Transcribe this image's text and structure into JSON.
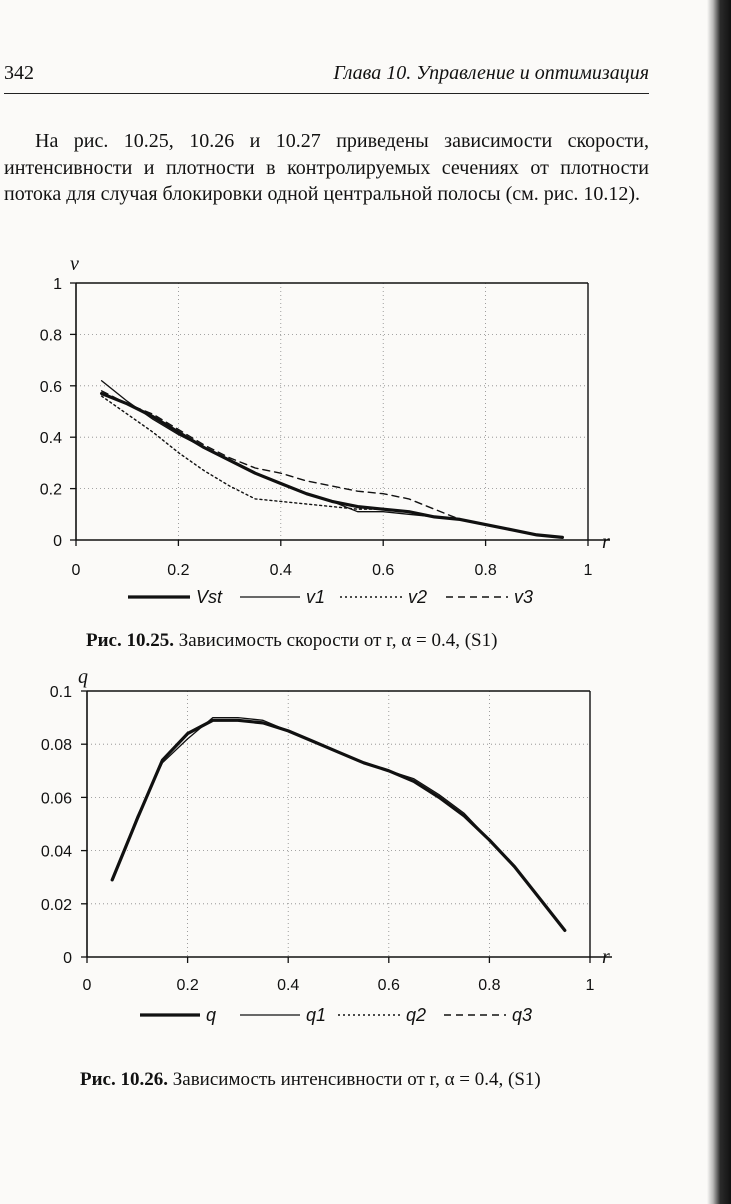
{
  "header": {
    "page_number": "342",
    "chapter_title": "Глава 10. Управление и оптимизация"
  },
  "intro_text": "На рис. 10.25, 10.26 и 10.27 приведены зависимости ско­рости, интенсивности и плотности в контролируемых се­чениях от плотности потока для случая блокировки одной центральной полосы (см. рис. 10.12).",
  "figures": [
    {
      "caption_label": "Рис. 10.25.",
      "caption_text": "Зависимость скорости от r, α = 0.4, (S1)"
    },
    {
      "caption_label": "Рис. 10.26.",
      "caption_text": "Зависимость интенсивности от r, α = 0.4, (S1)"
    }
  ],
  "chart_data": [
    {
      "type": "line",
      "xlabel": "r",
      "ylabel": "v",
      "xlim": [
        0,
        1
      ],
      "ylim": [
        0,
        1
      ],
      "x_ticks": [
        "0",
        "0.2",
        "0.4",
        "0.6",
        "0.8",
        "1"
      ],
      "y_ticks": [
        "0",
        "0.2",
        "0.4",
        "0.6",
        "0.8",
        "1"
      ],
      "grid": "dotted",
      "legend_position": "bottom",
      "series": [
        {
          "name": "Vst",
          "style": "thick-solid",
          "x": [
            0.05,
            0.1,
            0.15,
            0.2,
            0.25,
            0.3,
            0.35,
            0.4,
            0.45,
            0.5,
            0.55,
            0.6,
            0.65,
            0.7,
            0.75,
            0.8,
            0.85,
            0.9,
            0.95
          ],
          "y": [
            0.57,
            0.53,
            0.48,
            0.42,
            0.36,
            0.31,
            0.26,
            0.22,
            0.18,
            0.15,
            0.13,
            0.12,
            0.11,
            0.09,
            0.08,
            0.06,
            0.04,
            0.02,
            0.01
          ]
        },
        {
          "name": "v1",
          "style": "thin-solid",
          "x": [
            0.05,
            0.1,
            0.15,
            0.2,
            0.25,
            0.3,
            0.35,
            0.4,
            0.45,
            0.5,
            0.55,
            0.6,
            0.65,
            0.7,
            0.75,
            0.8,
            0.85,
            0.9,
            0.95
          ],
          "y": [
            0.62,
            0.54,
            0.47,
            0.41,
            0.36,
            0.31,
            0.26,
            0.22,
            0.18,
            0.15,
            0.11,
            0.11,
            0.1,
            0.09,
            0.08,
            0.06,
            0.04,
            0.02,
            0.01
          ]
        },
        {
          "name": "v2",
          "style": "dotted",
          "x": [
            0.05,
            0.1,
            0.15,
            0.2,
            0.25,
            0.3,
            0.35,
            0.4,
            0.45,
            0.5,
            0.55,
            0.6,
            0.65,
            0.7,
            0.75,
            0.8,
            0.85,
            0.9,
            0.95
          ],
          "y": [
            0.56,
            0.49,
            0.42,
            0.34,
            0.27,
            0.21,
            0.16,
            0.15,
            0.14,
            0.13,
            0.12,
            0.12,
            0.11,
            0.09,
            0.08,
            0.06,
            0.04,
            0.02,
            0.01
          ]
        },
        {
          "name": "v3",
          "style": "dashed",
          "x": [
            0.05,
            0.1,
            0.15,
            0.2,
            0.25,
            0.3,
            0.35,
            0.4,
            0.45,
            0.5,
            0.55,
            0.6,
            0.65,
            0.7,
            0.75,
            0.8,
            0.85,
            0.9,
            0.95
          ],
          "y": [
            0.58,
            0.53,
            0.49,
            0.43,
            0.37,
            0.32,
            0.28,
            0.26,
            0.23,
            0.21,
            0.19,
            0.18,
            0.16,
            0.12,
            0.08,
            0.06,
            0.04,
            0.02,
            0.01
          ]
        }
      ]
    },
    {
      "type": "line",
      "xlabel": "r",
      "ylabel": "q",
      "xlim": [
        0,
        1
      ],
      "ylim": [
        0,
        0.1
      ],
      "x_ticks": [
        "0",
        "0.2",
        "0.4",
        "0.6",
        "0.8",
        "1"
      ],
      "y_ticks": [
        "0",
        "0.02",
        "0.04",
        "0.06",
        "0.08",
        "0.1"
      ],
      "grid": "dotted",
      "legend_position": "bottom",
      "series": [
        {
          "name": "q",
          "style": "thick-solid",
          "x": [
            0.05,
            0.1,
            0.15,
            0.2,
            0.25,
            0.3,
            0.35,
            0.4,
            0.45,
            0.5,
            0.55,
            0.6,
            0.65,
            0.7,
            0.75,
            0.8,
            0.85,
            0.9,
            0.95
          ],
          "y": [
            0.029,
            0.052,
            0.074,
            0.084,
            0.089,
            0.089,
            0.088,
            0.085,
            0.081,
            0.077,
            0.073,
            0.07,
            0.066,
            0.06,
            0.053,
            0.044,
            0.034,
            0.022,
            0.01
          ]
        },
        {
          "name": "q1",
          "style": "thin-solid",
          "x": [
            0.05,
            0.1,
            0.15,
            0.2,
            0.25,
            0.3,
            0.35,
            0.4,
            0.45,
            0.5,
            0.55,
            0.6,
            0.65,
            0.7,
            0.75,
            0.8,
            0.85,
            0.9,
            0.95
          ],
          "y": [
            0.029,
            0.053,
            0.073,
            0.082,
            0.09,
            0.09,
            0.089,
            0.085,
            0.081,
            0.077,
            0.073,
            0.07,
            0.067,
            0.061,
            0.054,
            0.044,
            0.034,
            0.022,
            0.01
          ]
        },
        {
          "name": "q2",
          "style": "dotted",
          "x": [
            0.05,
            0.1,
            0.15,
            0.2,
            0.25,
            0.3,
            0.35,
            0.4,
            0.45,
            0.5,
            0.55,
            0.6,
            0.65,
            0.7,
            0.75,
            0.8,
            0.85,
            0.9,
            0.95
          ],
          "y": [
            0.029,
            0.052,
            0.074,
            0.084,
            0.089,
            0.089,
            0.088,
            0.085,
            0.081,
            0.077,
            0.073,
            0.07,
            0.066,
            0.06,
            0.053,
            0.044,
            0.034,
            0.022,
            0.01
          ]
        },
        {
          "name": "q3",
          "style": "dashed",
          "x": [
            0.05,
            0.1,
            0.15,
            0.2,
            0.25,
            0.3,
            0.35,
            0.4,
            0.45,
            0.5,
            0.55,
            0.6,
            0.65,
            0.7,
            0.75,
            0.8,
            0.85,
            0.9,
            0.95
          ],
          "y": [
            0.029,
            0.052,
            0.074,
            0.084,
            0.089,
            0.089,
            0.088,
            0.085,
            0.081,
            0.077,
            0.073,
            0.07,
            0.066,
            0.06,
            0.053,
            0.044,
            0.034,
            0.022,
            0.01
          ]
        }
      ]
    }
  ]
}
